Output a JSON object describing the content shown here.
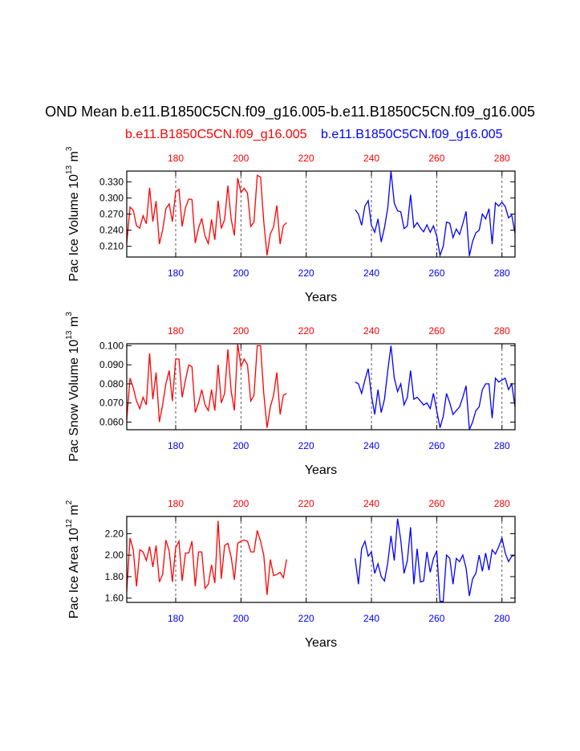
{
  "title": "OND Mean b.e11.B1850C5CN.f09_g16.005-b.e11.B1850C5CN.f09_g16.005",
  "subtitle_left": "b.e11.B1850C5CN.f09_g16.005",
  "subtitle_right": "b.e11.B1850C5CN.f09_g16.005",
  "colors": {
    "case1": "#ff0000",
    "case2": "#0000ff"
  },
  "chart_data": [
    {
      "type": "line",
      "ylabel": {
        "main": "Pac Ice Volume 10",
        "exp": "13",
        "unit": " m",
        "unit_exp": "3"
      },
      "xlabel": "Years",
      "xlim": [
        165,
        284
      ],
      "ylim": [
        0.19,
        0.35
      ],
      "xticks": [
        180,
        200,
        220,
        240,
        260,
        280
      ],
      "yticks": [
        0.21,
        0.24,
        0.27,
        0.3,
        0.33
      ],
      "ytick_labels": [
        "0.210",
        "0.240",
        "0.270",
        "0.300",
        "0.330"
      ],
      "dashed_x": [
        180,
        200,
        220,
        240,
        260,
        280
      ],
      "series": [
        {
          "color": "#ff0000",
          "x_start": 165,
          "values": [
            0.215,
            0.283,
            0.277,
            0.248,
            0.244,
            0.267,
            0.252,
            0.319,
            0.256,
            0.294,
            0.214,
            0.24,
            0.28,
            0.289,
            0.256,
            0.311,
            0.316,
            0.247,
            0.282,
            0.298,
            0.297,
            0.216,
            0.244,
            0.262,
            0.229,
            0.215,
            0.26,
            0.222,
            0.295,
            0.243,
            0.26,
            0.323,
            0.26,
            0.23,
            0.337,
            0.31,
            0.318,
            0.309,
            0.247,
            0.255,
            0.342,
            0.339,
            0.256,
            0.193,
            0.233,
            0.246,
            0.286,
            0.214,
            0.248,
            0.254
          ]
        },
        {
          "color": "#0000ff",
          "x_start": 235,
          "values": [
            0.278,
            0.27,
            0.249,
            0.285,
            0.295,
            0.249,
            0.236,
            0.261,
            0.218,
            0.245,
            0.282,
            0.35,
            0.29,
            0.276,
            0.274,
            0.243,
            0.248,
            0.306,
            0.245,
            0.254,
            0.244,
            0.237,
            0.25,
            0.236,
            0.248,
            0.229,
            0.193,
            0.21,
            0.255,
            0.253,
            0.226,
            0.242,
            0.232,
            0.252,
            0.275,
            0.192,
            0.219,
            0.235,
            0.24,
            0.27,
            0.261,
            0.28,
            0.214,
            0.291,
            0.285,
            0.292,
            0.284,
            0.263,
            0.268,
            0.234
          ]
        }
      ]
    },
    {
      "type": "line",
      "ylabel": {
        "main": "Pac Snow Volume 10",
        "exp": "13",
        "unit": " m",
        "unit_exp": "3"
      },
      "xlabel": "Years",
      "xlim": [
        165,
        284
      ],
      "ylim": [
        0.056,
        0.101
      ],
      "xticks": [
        180,
        200,
        220,
        240,
        260,
        280
      ],
      "yticks": [
        0.06,
        0.07,
        0.08,
        0.09,
        0.1
      ],
      "ytick_labels": [
        "0.060",
        "0.070",
        "0.080",
        "0.090",
        "0.100"
      ],
      "dashed_x": [
        180,
        200,
        220,
        240,
        260,
        280
      ],
      "series": [
        {
          "color": "#ff0000",
          "x_start": 165,
          "values": [
            0.061,
            0.083,
            0.078,
            0.071,
            0.067,
            0.073,
            0.069,
            0.096,
            0.072,
            0.086,
            0.06,
            0.069,
            0.08,
            0.087,
            0.071,
            0.093,
            0.093,
            0.073,
            0.082,
            0.09,
            0.089,
            0.065,
            0.07,
            0.077,
            0.069,
            0.066,
            0.077,
            0.066,
            0.09,
            0.07,
            0.075,
            0.098,
            0.076,
            0.066,
            0.101,
            0.089,
            0.093,
            0.09,
            0.071,
            0.074,
            0.1,
            0.1,
            0.075,
            0.057,
            0.068,
            0.074,
            0.086,
            0.064,
            0.074,
            0.075
          ]
        },
        {
          "color": "#0000ff",
          "x_start": 235,
          "values": [
            0.081,
            0.08,
            0.075,
            0.082,
            0.088,
            0.074,
            0.064,
            0.077,
            0.065,
            0.072,
            0.087,
            0.1,
            0.083,
            0.076,
            0.08,
            0.069,
            0.073,
            0.087,
            0.072,
            0.073,
            0.071,
            0.069,
            0.07,
            0.067,
            0.075,
            0.066,
            0.057,
            0.063,
            0.075,
            0.07,
            0.064,
            0.066,
            0.068,
            0.073,
            0.079,
            0.056,
            0.06,
            0.066,
            0.068,
            0.077,
            0.08,
            0.08,
            0.062,
            0.083,
            0.081,
            0.082,
            0.083,
            0.077,
            0.08,
            0.068
          ]
        }
      ]
    },
    {
      "type": "line",
      "ylabel": {
        "main": "Pac Ice Area 10",
        "exp": "12",
        "unit": " m",
        "unit_exp": "2"
      },
      "xlabel": "Years",
      "xlim": [
        165,
        284
      ],
      "ylim": [
        1.56,
        2.36
      ],
      "xticks": [
        180,
        200,
        220,
        240,
        260,
        280
      ],
      "yticks": [
        1.6,
        1.8,
        2.0,
        2.2
      ],
      "ytick_labels": [
        "1.60",
        "1.80",
        "2.00",
        "2.20"
      ],
      "dashed_x": [
        180,
        200,
        220,
        240,
        260,
        280
      ],
      "series": [
        {
          "color": "#ff0000",
          "x_start": 165,
          "values": [
            1.66,
            2.16,
            2.05,
            1.71,
            2.05,
            2.03,
            1.95,
            2.08,
            1.89,
            2.09,
            1.75,
            1.82,
            2.14,
            2.04,
            1.75,
            2.07,
            2.13,
            1.76,
            2.02,
            2.02,
            2.13,
            1.71,
            2.03,
            2.03,
            1.69,
            1.73,
            1.91,
            1.74,
            2.32,
            1.78,
            2.09,
            2.11,
            1.98,
            1.77,
            2.11,
            2.13,
            2.14,
            2.13,
            2.03,
            2.03,
            2.23,
            2.13,
            2.0,
            1.63,
            1.96,
            1.81,
            1.82,
            1.84,
            1.79,
            1.96
          ]
        },
        {
          "color": "#0000ff",
          "x_start": 235,
          "values": [
            1.97,
            1.73,
            2.06,
            2.13,
            1.99,
            2.03,
            1.83,
            1.92,
            1.8,
            1.76,
            1.93,
            2.18,
            1.95,
            2.34,
            2.14,
            1.83,
            1.95,
            2.26,
            1.73,
            2.06,
            1.75,
            1.76,
            2.03,
            1.84,
            1.97,
            2.04,
            1.57,
            1.57,
            2.0,
            1.97,
            1.73,
            1.97,
            1.94,
            2.0,
            1.88,
            1.62,
            1.78,
            1.83,
            2.0,
            1.85,
            2.02,
            1.86,
            2.05,
            2.01,
            2.08,
            2.16,
            2.02,
            1.94,
            1.99,
            2.0
          ]
        }
      ]
    }
  ]
}
